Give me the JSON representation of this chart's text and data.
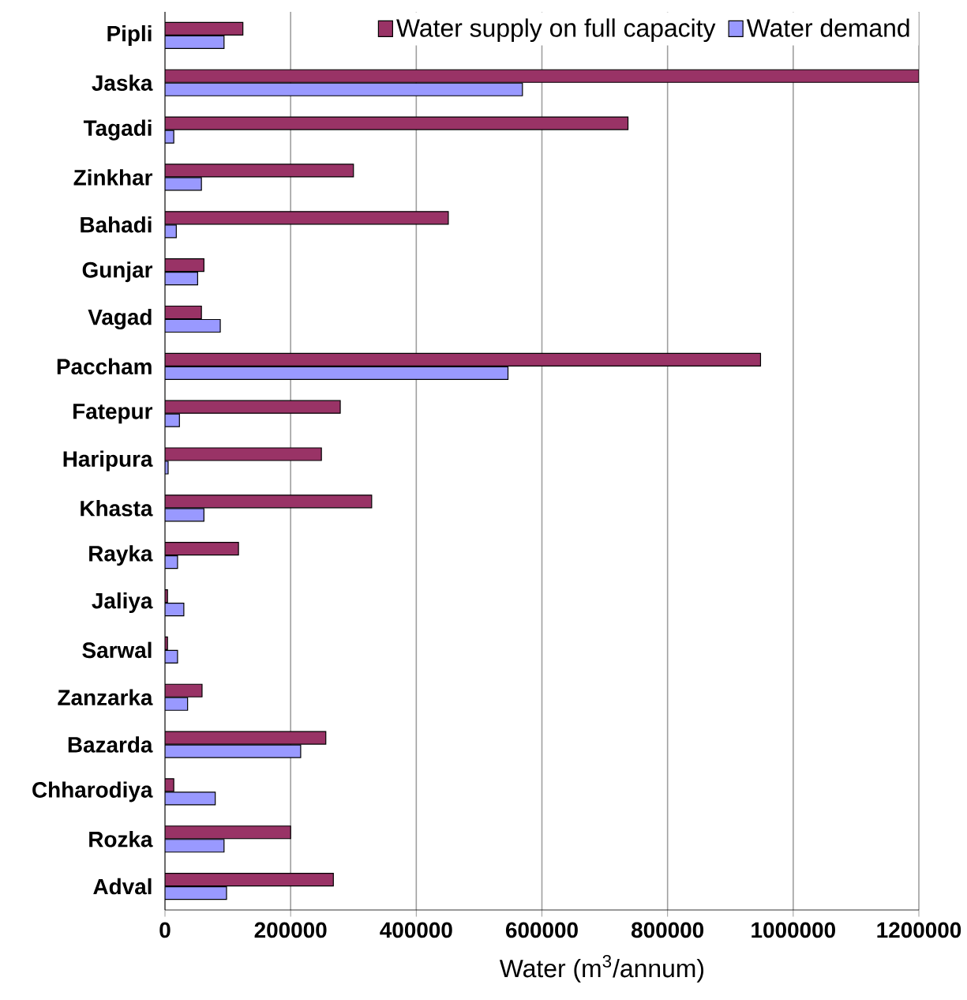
{
  "chart_data": {
    "type": "bar",
    "orientation": "horizontal",
    "xlabel": "Water (m$^{3}$/annum)",
    "categories": [
      "Pipli",
      "Jaska",
      "Tagadi",
      "Zinkhar",
      "Bahadi",
      "Gunjar",
      "Vagad",
      "Paccham",
      "Fatepur",
      "Haripura",
      "Khasta",
      "Rayka",
      "Jaliya",
      "Sarwal",
      "Zanzarka",
      "Bazarda",
      "Chharodiya",
      "Rozka",
      "Adval"
    ],
    "series": [
      {
        "name": "Water supply on full capacity",
        "color": "#993366",
        "values": [
          124000,
          1200000,
          737000,
          300000,
          451000,
          62000,
          58000,
          948000,
          279000,
          249000,
          329000,
          117000,
          4000,
          4000,
          59000,
          256000,
          14000,
          200000,
          268000
        ]
      },
      {
        "name": "Water demand",
        "color": "#9999ff",
        "values": [
          94000,
          569000,
          14000,
          58000,
          18000,
          52000,
          88000,
          546000,
          23000,
          5000,
          62000,
          20000,
          30000,
          20000,
          36000,
          216000,
          80000,
          94000,
          98000
        ]
      }
    ],
    "xlim": [
      0,
      1200000
    ],
    "xticks": [
      0,
      200000,
      400000,
      600000,
      800000,
      1000000,
      1200000
    ],
    "grid": "x",
    "legend": "top right"
  }
}
